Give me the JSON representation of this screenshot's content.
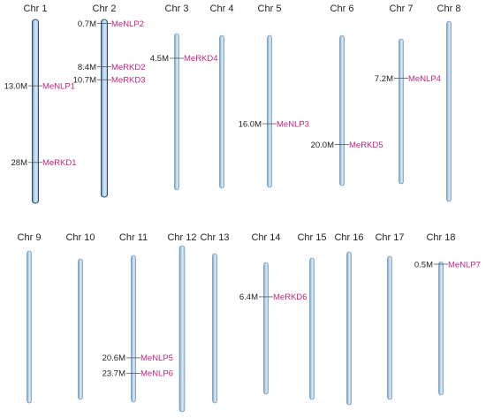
{
  "colors": {
    "bar_light": "#dbe9f5",
    "bar_mid": "#a9c8e4",
    "bar_dark": "#6f9fcb",
    "bar_stroke": "#5b86ad",
    "gene_label": "#c0267e",
    "text": "#222222"
  },
  "chromosomes": [
    {
      "id": "chr1",
      "label": "Chr 1",
      "length_mb": 36,
      "markers": [
        {
          "pos_mb": 13.0,
          "pos_label": "13.0M",
          "gene": "MeNLP1"
        },
        {
          "pos_mb": 28.0,
          "pos_label": "28M",
          "gene": "MeRKD1"
        }
      ]
    },
    {
      "id": "chr2",
      "label": "Chr 2",
      "length_mb": 31.5,
      "markers": [
        {
          "pos_mb": 0.7,
          "pos_label": "0.7M",
          "gene": "MeNLP2"
        },
        {
          "pos_mb": 8.4,
          "pos_label": "8.4M",
          "gene": "MeRKD2"
        },
        {
          "pos_mb": 10.7,
          "pos_label": "10.7M",
          "gene": "MeRKD3"
        }
      ]
    },
    {
      "id": "chr3",
      "label": "Chr 3",
      "length_mb": 28.5,
      "markers": [
        {
          "pos_mb": 4.5,
          "pos_label": "4.5M",
          "gene": "MeRKD4"
        }
      ]
    },
    {
      "id": "chr4",
      "label": "Chr 4",
      "length_mb": 27,
      "markers": []
    },
    {
      "id": "chr5",
      "label": "Chr 5",
      "length_mb": 27.5,
      "markers": [
        {
          "pos_mb": 16.0,
          "pos_label": "16.0M",
          "gene": "MeNLP3"
        }
      ]
    },
    {
      "id": "chr6",
      "label": "Chr 6",
      "length_mb": 27.5,
      "markers": [
        {
          "pos_mb": 20.0,
          "pos_label": "20.0M",
          "gene": "MeRKD5"
        }
      ]
    },
    {
      "id": "chr7",
      "label": "Chr 7",
      "length_mb": 26.5,
      "markers": [
        {
          "pos_mb": 7.2,
          "pos_label": "7.2M",
          "gene": "MeNLP4"
        }
      ]
    },
    {
      "id": "chr8",
      "label": "Chr 8",
      "length_mb": 33,
      "markers": []
    },
    {
      "id": "chr9",
      "label": "Chr 9",
      "length_mb": 29.5,
      "markers": []
    },
    {
      "id": "chr10",
      "label": "Chr 10",
      "length_mb": 28,
      "markers": []
    },
    {
      "id": "chr11",
      "label": "Chr 11",
      "length_mb": 29.5,
      "markers": [
        {
          "pos_mb": 20.6,
          "pos_label": "20.6M",
          "gene": "MeNLP5"
        },
        {
          "pos_mb": 23.7,
          "pos_label": "23.7M",
          "gene": "MeNLP6"
        }
      ]
    },
    {
      "id": "chr12",
      "label": "Chr 12",
      "length_mb": 31.5,
      "markers": []
    },
    {
      "id": "chr13",
      "label": "Chr 13",
      "length_mb": 28.5,
      "markers": []
    },
    {
      "id": "chr14",
      "label": "Chr 14",
      "length_mb": 24.5,
      "markers": [
        {
          "pos_mb": 6.4,
          "pos_label": "6.4M",
          "gene": "MeRKD6"
        }
      ]
    },
    {
      "id": "chr15",
      "label": "Chr 15",
      "length_mb": 25.5,
      "markers": []
    },
    {
      "id": "chr16",
      "label": "Chr 16",
      "length_mb": 29.5,
      "markers": []
    },
    {
      "id": "chr17",
      "label": "Chr 17",
      "length_mb": 27.5,
      "markers": []
    },
    {
      "id": "chr18",
      "label": "Chr 18",
      "length_mb": 25.5,
      "markers": [
        {
          "pos_mb": 0.5,
          "pos_label": "0.5M",
          "gene": "MeNLP7"
        }
      ]
    }
  ]
}
